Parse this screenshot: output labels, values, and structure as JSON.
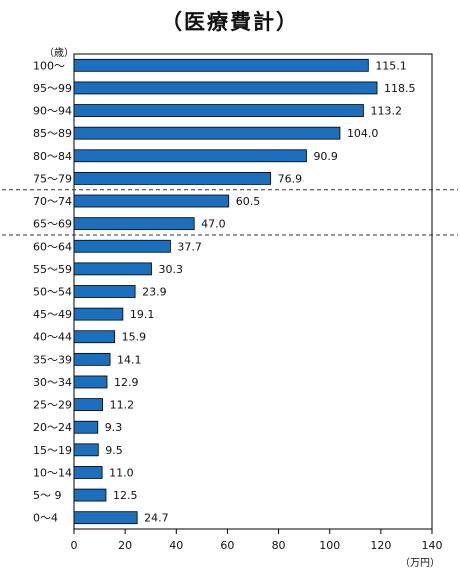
{
  "chart_data": {
    "type": "bar",
    "orientation": "horizontal",
    "title": "（医療費計）",
    "ylabel": "（歳）",
    "xlabel": "（万円）",
    "xlim": [
      0,
      140
    ],
    "xticks": [
      0,
      20,
      40,
      60,
      80,
      100,
      120,
      140
    ],
    "grid": false,
    "bar_color": "#1a6fbf",
    "categories": [
      "100〜",
      "95〜99",
      "90〜94",
      "85〜89",
      "80〜84",
      "75〜79",
      "70〜74",
      "65〜69",
      "60〜64",
      "55〜59",
      "50〜54",
      "45〜49",
      "40〜44",
      "35〜39",
      "30〜34",
      "25〜29",
      "20〜24",
      "15〜19",
      "10〜14",
      "5〜 9",
      "0〜4"
    ],
    "values": [
      115.1,
      118.5,
      113.2,
      104.0,
      90.9,
      76.9,
      60.5,
      47.0,
      37.7,
      30.3,
      23.9,
      19.1,
      15.9,
      14.1,
      12.9,
      11.2,
      9.3,
      9.5,
      11.0,
      12.5,
      24.7
    ],
    "value_labels": [
      "115.1",
      "118.5",
      "113.2",
      "104.0",
      "90.9",
      "76.9",
      "60.5",
      "47.0",
      "37.7",
      "30.3",
      "23.9",
      "19.1",
      "15.9",
      "14.1",
      "12.9",
      "11.2",
      "9.3",
      "9.5",
      "11.0",
      "12.5",
      "24.7"
    ],
    "dashed_separators_after": [
      "75〜79",
      "65〜69"
    ]
  }
}
